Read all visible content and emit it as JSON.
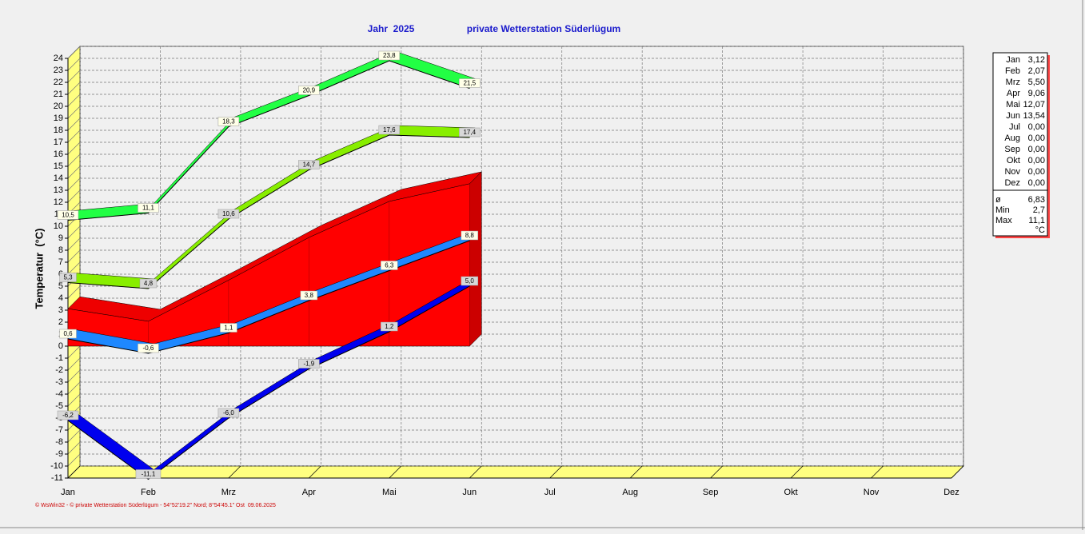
{
  "chart_data": {
    "type": "line",
    "title": "Jahr  2025",
    "subtitle": "private Wetterstation Süderlügum",
    "y_label": "Temperatur  (°C)",
    "footer": "© WsWin32 - © private Wetterstation Süderlügum - 54°52'19.2\" Nord; 8°54'45.1\" Ost  09.06.2025",
    "categories": [
      "Jan",
      "Feb",
      "Mrz",
      "Apr",
      "Mai",
      "Jun",
      "Jul",
      "Aug",
      "Sep",
      "Okt",
      "Nov",
      "Dez"
    ],
    "ylim": [
      -11,
      24
    ],
    "yticks": [
      -11,
      -10,
      -9,
      -8,
      -7,
      -6,
      -5,
      -4,
      -3,
      -2,
      -1,
      0,
      1,
      2,
      3,
      4,
      5,
      6,
      7,
      8,
      9,
      10,
      11,
      12,
      13,
      14,
      15,
      16,
      17,
      18,
      19,
      20,
      21,
      22,
      23,
      24
    ],
    "grid": true,
    "area": {
      "color": "#ff0000",
      "values": [
        3.12,
        2.07,
        5.5,
        9.06,
        12.07,
        13.54,
        null,
        null,
        null,
        null,
        null,
        null
      ]
    },
    "series": [
      {
        "color": "#22ff44",
        "values": [
          10.5,
          11.1,
          18.3,
          20.9,
          23.8,
          21.5,
          null,
          null,
          null,
          null,
          null,
          null
        ],
        "value_labels": [
          "10,5",
          "11,1",
          "18,3",
          "20,9",
          "23,8",
          "21,5",
          null,
          null,
          null,
          null,
          null,
          null
        ]
      },
      {
        "color": "#88ee00",
        "values": [
          5.3,
          4.8,
          10.6,
          14.7,
          17.6,
          17.4,
          null,
          null,
          null,
          null,
          null,
          null
        ],
        "value_labels": [
          "5,3",
          "4,8",
          "10,6",
          "14,7",
          "17,6",
          "17,4",
          null,
          null,
          null,
          null,
          null,
          null
        ]
      },
      {
        "color": "#1e88ff",
        "values": [
          0.6,
          -0.6,
          1.1,
          3.8,
          6.3,
          8.8,
          null,
          null,
          null,
          null,
          null,
          null
        ],
        "value_labels": [
          "0,6",
          "-0,6",
          "1,1",
          "3,8",
          "6,3",
          "8,8",
          null,
          null,
          null,
          null,
          null,
          null
        ]
      },
      {
        "color": "#0000ee",
        "values": [
          -6.2,
          -11.1,
          -6.0,
          -1.9,
          1.2,
          5.0,
          null,
          null,
          null,
          null,
          null,
          null
        ],
        "value_labels": [
          "-6,2",
          "-11,1",
          "-6,0",
          "-1,9",
          "1,2",
          "5,0",
          null,
          null,
          null,
          null,
          null,
          null
        ]
      }
    ],
    "table": {
      "values": [
        3.12,
        2.07,
        5.5,
        9.06,
        12.07,
        13.54,
        0,
        0,
        0,
        0,
        0,
        0
      ],
      "value_labels": [
        "3,12",
        "2,07",
        "5,50",
        "9,06",
        "12,07",
        "13,54",
        "0,00",
        "0,00",
        "0,00",
        "0,00",
        "0,00",
        "0,00"
      ],
      "stats": [
        {
          "symbol": "ø",
          "value": 6.83,
          "label": "6,83"
        },
        {
          "symbol": "Min",
          "value": 2.7,
          "label": "2,7"
        },
        {
          "symbol": "Max",
          "value": 11.1,
          "label": "11,1"
        }
      ],
      "unit": "°C"
    }
  }
}
